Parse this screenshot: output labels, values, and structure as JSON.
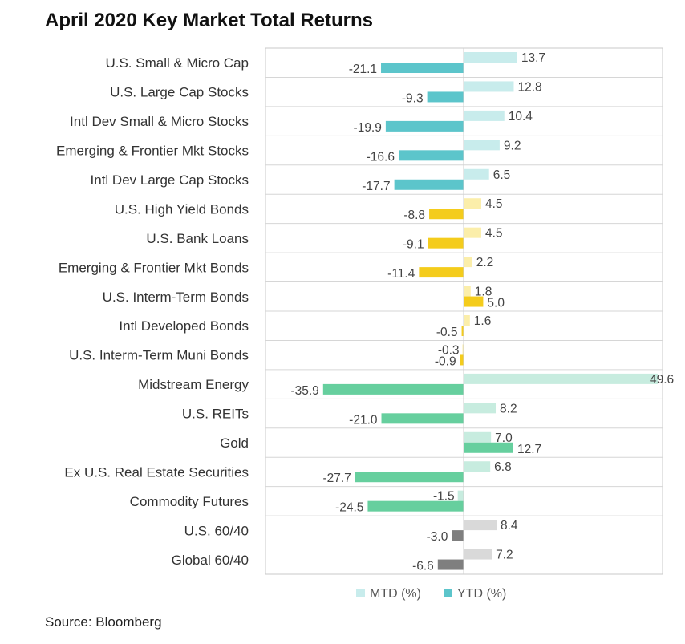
{
  "chart_data": {
    "type": "bar",
    "orientation": "horizontal",
    "title": "April 2020 Key Market Total Returns",
    "source": "Source: Bloomberg",
    "xlim": [
      -45,
      50
    ],
    "legend_position": "bottom",
    "grid": false,
    "series": [
      {
        "name": "MTD (%)",
        "values": [
          13.7,
          12.8,
          10.4,
          9.2,
          6.5,
          4.5,
          4.5,
          2.2,
          1.8,
          1.6,
          -0.3,
          49.6,
          8.2,
          7.0,
          6.8,
          -1.5,
          8.4,
          7.2
        ]
      },
      {
        "name": "YTD (%)",
        "values": [
          -21.1,
          -9.3,
          -19.9,
          -16.6,
          -17.7,
          -8.8,
          -9.1,
          -11.4,
          5.0,
          -0.5,
          -0.9,
          -35.9,
          -21.0,
          12.7,
          -27.7,
          -24.5,
          -3.0,
          -6.6
        ]
      }
    ],
    "value_labels": {
      "mtd": [
        "13.7",
        "12.8",
        "10.4",
        "9.2",
        "6.5",
        "4.5",
        "4.5",
        "2.2",
        "1.8",
        "1.6",
        "-0.3",
        "49.6",
        "8.2",
        "7.0",
        "6.8",
        "-1.5",
        "8.4",
        "7.2"
      ],
      "ytd": [
        "-21.1",
        "-9.3",
        "-19.9",
        "-16.6",
        "-17.7",
        "-8.8",
        "-9.1",
        "-11.4",
        "5.0",
        "-0.5",
        "-0.9",
        "-35.9",
        "-21.0",
        "12.7",
        "-27.7",
        "-24.5",
        "-3.0",
        "-6.6"
      ]
    },
    "categories": [
      {
        "label": "U.S. Small & Micro Cap",
        "group": "equity"
      },
      {
        "label": "U.S. Large Cap Stocks",
        "group": "equity"
      },
      {
        "label": "Intl Dev Small & Micro Stocks",
        "group": "equity"
      },
      {
        "label": "Emerging & Frontier Mkt Stocks",
        "group": "equity"
      },
      {
        "label": "Intl Dev Large Cap Stocks",
        "group": "equity"
      },
      {
        "label": "U.S. High Yield Bonds",
        "group": "bond"
      },
      {
        "label": "U.S. Bank Loans",
        "group": "bond"
      },
      {
        "label": "Emerging & Frontier Mkt Bonds",
        "group": "bond"
      },
      {
        "label": "U.S. Interm-Term Bonds",
        "group": "bond"
      },
      {
        "label": "Intl Developed Bonds",
        "group": "bond"
      },
      {
        "label": "U.S. Interm-Term Muni Bonds",
        "group": "bond"
      },
      {
        "label": "Midstream Energy",
        "group": "real"
      },
      {
        "label": "U.S. REITs",
        "group": "real"
      },
      {
        "label": "Gold",
        "group": "real"
      },
      {
        "label": "Ex U.S. Real Estate Securities",
        "group": "real"
      },
      {
        "label": "Commodity Futures",
        "group": "real"
      },
      {
        "label": "U.S. 60/40",
        "group": "balanced"
      },
      {
        "label": "Global 60/40",
        "group": "balanced"
      }
    ],
    "group_colors": {
      "equity": {
        "mtd": "#c8ecec",
        "ytd": "#5cc5cb"
      },
      "bond": {
        "mtd": "#fbeeaa",
        "ytd": "#f4cc1c"
      },
      "real": {
        "mtd": "#c7ecdf",
        "ytd": "#66cf9e"
      },
      "balanced": {
        "mtd": "#d9d9d9",
        "ytd": "#7f7f7f"
      }
    },
    "legend": [
      {
        "label": "MTD (%)",
        "color": "#c8ecec"
      },
      {
        "label": "YTD (%)",
        "color": "#5cc5cb"
      }
    ]
  }
}
